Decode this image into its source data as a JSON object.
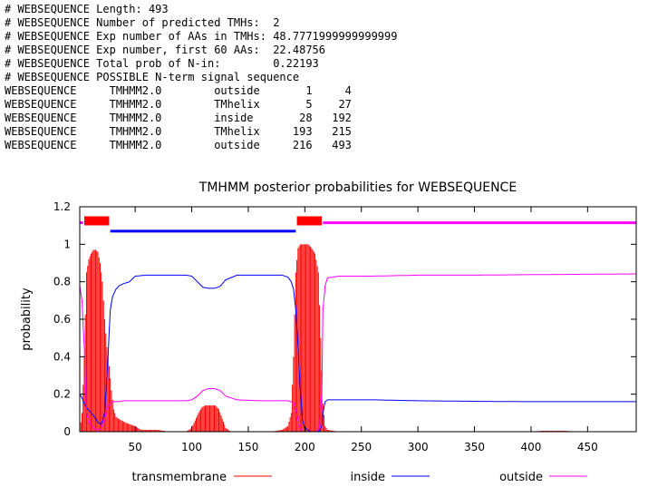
{
  "header_lines": [
    "# WEBSEQUENCE Length: 493",
    "# WEBSEQUENCE Number of predicted TMHs:  2",
    "# WEBSEQUENCE Exp number of AAs in TMHs: 48.7771999999999999",
    "# WEBSEQUENCE Exp number, first 60 AAs:  22.48756",
    "# WEBSEQUENCE Total prob of N-in:        0.22193",
    "# WEBSEQUENCE POSSIBLE N-term signal sequence"
  ],
  "topology_rows": [
    {
      "seq": "WEBSEQUENCE",
      "method": "TMHMM2.0",
      "region": "outside",
      "start": "1",
      "end": "4"
    },
    {
      "seq": "WEBSEQUENCE",
      "method": "TMHMM2.0",
      "region": "TMhelix",
      "start": "5",
      "end": "27"
    },
    {
      "seq": "WEBSEQUENCE",
      "method": "TMHMM2.0",
      "region": "inside",
      "start": "28",
      "end": "192"
    },
    {
      "seq": "WEBSEQUENCE",
      "method": "TMHMM2.0",
      "region": "TMhelix",
      "start": "193",
      "end": "215"
    },
    {
      "seq": "WEBSEQUENCE",
      "method": "TMHMM2.0",
      "region": "outside",
      "start": "216",
      "end": "493"
    }
  ],
  "chart_data": {
    "type": "line",
    "title": "TMHMM posterior probabilities for WEBSEQUENCE",
    "xlabel": "",
    "ylabel": "probability",
    "xlim": [
      1,
      493
    ],
    "ylim": [
      0,
      1.2
    ],
    "xticks": [
      50,
      100,
      150,
      200,
      250,
      300,
      350,
      400,
      450
    ],
    "yticks": [
      0,
      0.2,
      0.4,
      0.6,
      0.8,
      1,
      1.2
    ],
    "legend_position": "bottom",
    "colors": {
      "transmembrane": "#ff0000",
      "inside": "#0000ff",
      "outside": "#ff00ff"
    },
    "series": [
      {
        "name": "transmembrane",
        "style": "impulses",
        "x": [
          1,
          3,
          5,
          7,
          9,
          11,
          13,
          15,
          17,
          19,
          21,
          23,
          25,
          27,
          29,
          31,
          33,
          35,
          38,
          41,
          45,
          50,
          55,
          60,
          70,
          80,
          90,
          95,
          100,
          103,
          106,
          109,
          112,
          115,
          118,
          121,
          124,
          127,
          130,
          135,
          150,
          170,
          180,
          185,
          188,
          190,
          192,
          194,
          196,
          198,
          200,
          203,
          206,
          209,
          212,
          214,
          216,
          218,
          220,
          230,
          260,
          300,
          350,
          400,
          410,
          420,
          430,
          440,
          450,
          493
        ],
        "y": [
          0,
          0.1,
          0.4,
          0.85,
          0.92,
          0.95,
          0.97,
          0.97,
          0.96,
          0.9,
          0.8,
          0.6,
          0.45,
          0.35,
          0.22,
          0.12,
          0.08,
          0.07,
          0.06,
          0.05,
          0.04,
          0.03,
          0.01,
          0.01,
          0.01,
          0,
          0,
          0,
          0.02,
          0.06,
          0.1,
          0.13,
          0.14,
          0.14,
          0.14,
          0.14,
          0.12,
          0.07,
          0.02,
          0,
          0,
          0,
          0.01,
          0.03,
          0.1,
          0.4,
          0.85,
          0.98,
          1,
          1,
          1,
          1,
          0.98,
          0.95,
          0.85,
          0.5,
          0.15,
          0.03,
          0.01,
          0,
          0,
          0,
          0,
          0,
          0.005,
          0.005,
          0.005,
          0,
          0,
          0
        ]
      },
      {
        "name": "inside",
        "style": "line",
        "x": [
          1,
          3,
          5,
          8,
          11,
          14,
          17,
          20,
          23,
          26,
          28,
          30,
          33,
          36,
          40,
          45,
          50,
          60,
          80,
          95,
          100,
          105,
          110,
          115,
          120,
          125,
          130,
          140,
          160,
          180,
          185,
          188,
          190,
          192,
          194,
          196,
          198,
          200,
          205,
          210,
          213,
          215,
          216,
          218,
          220,
          230,
          260,
          300,
          350,
          400,
          450,
          493
        ],
        "y": [
          0.2,
          0.18,
          0.15,
          0.12,
          0.1,
          0.08,
          0.05,
          0.04,
          0.1,
          0.4,
          0.65,
          0.72,
          0.76,
          0.78,
          0.79,
          0.8,
          0.83,
          0.835,
          0.835,
          0.835,
          0.83,
          0.8,
          0.77,
          0.765,
          0.765,
          0.775,
          0.81,
          0.835,
          0.835,
          0.835,
          0.825,
          0.8,
          0.76,
          0.65,
          0.45,
          0.22,
          0.06,
          0.02,
          0,
          0,
          0.005,
          0.03,
          0.1,
          0.16,
          0.17,
          0.17,
          0.17,
          0.165,
          0.162,
          0.16,
          0.16,
          0.16
        ]
      },
      {
        "name": "outside",
        "style": "line",
        "x": [
          1,
          3,
          5,
          7,
          10,
          13,
          16,
          19,
          22,
          25,
          28,
          30,
          35,
          40,
          60,
          80,
          95,
          100,
          105,
          110,
          115,
          120,
          125,
          130,
          140,
          160,
          180,
          185,
          188,
          190,
          192,
          194,
          196,
          198,
          200,
          205,
          210,
          213,
          215,
          216,
          218,
          220,
          230,
          260,
          300,
          350,
          400,
          450,
          493
        ],
        "y": [
          0.78,
          0.7,
          0.45,
          0.1,
          0.04,
          0.02,
          0.01,
          0.01,
          0.05,
          0.12,
          0.15,
          0.16,
          0.16,
          0.165,
          0.165,
          0.165,
          0.165,
          0.17,
          0.19,
          0.22,
          0.23,
          0.23,
          0.22,
          0.19,
          0.17,
          0.165,
          0.165,
          0.165,
          0.16,
          0.15,
          0.12,
          0.06,
          0.02,
          0,
          0,
          0,
          0,
          0.02,
          0.2,
          0.65,
          0.78,
          0.82,
          0.83,
          0.83,
          0.835,
          0.835,
          0.838,
          0.84,
          0.842
        ]
      }
    ],
    "topology_bars": [
      {
        "region": "outside",
        "start": 1,
        "end": 4
      },
      {
        "region": "transmembrane",
        "start": 5,
        "end": 27
      },
      {
        "region": "inside",
        "start": 28,
        "end": 192
      },
      {
        "region": "transmembrane",
        "start": 193,
        "end": 215
      },
      {
        "region": "outside",
        "start": 216,
        "end": 493
      }
    ]
  }
}
